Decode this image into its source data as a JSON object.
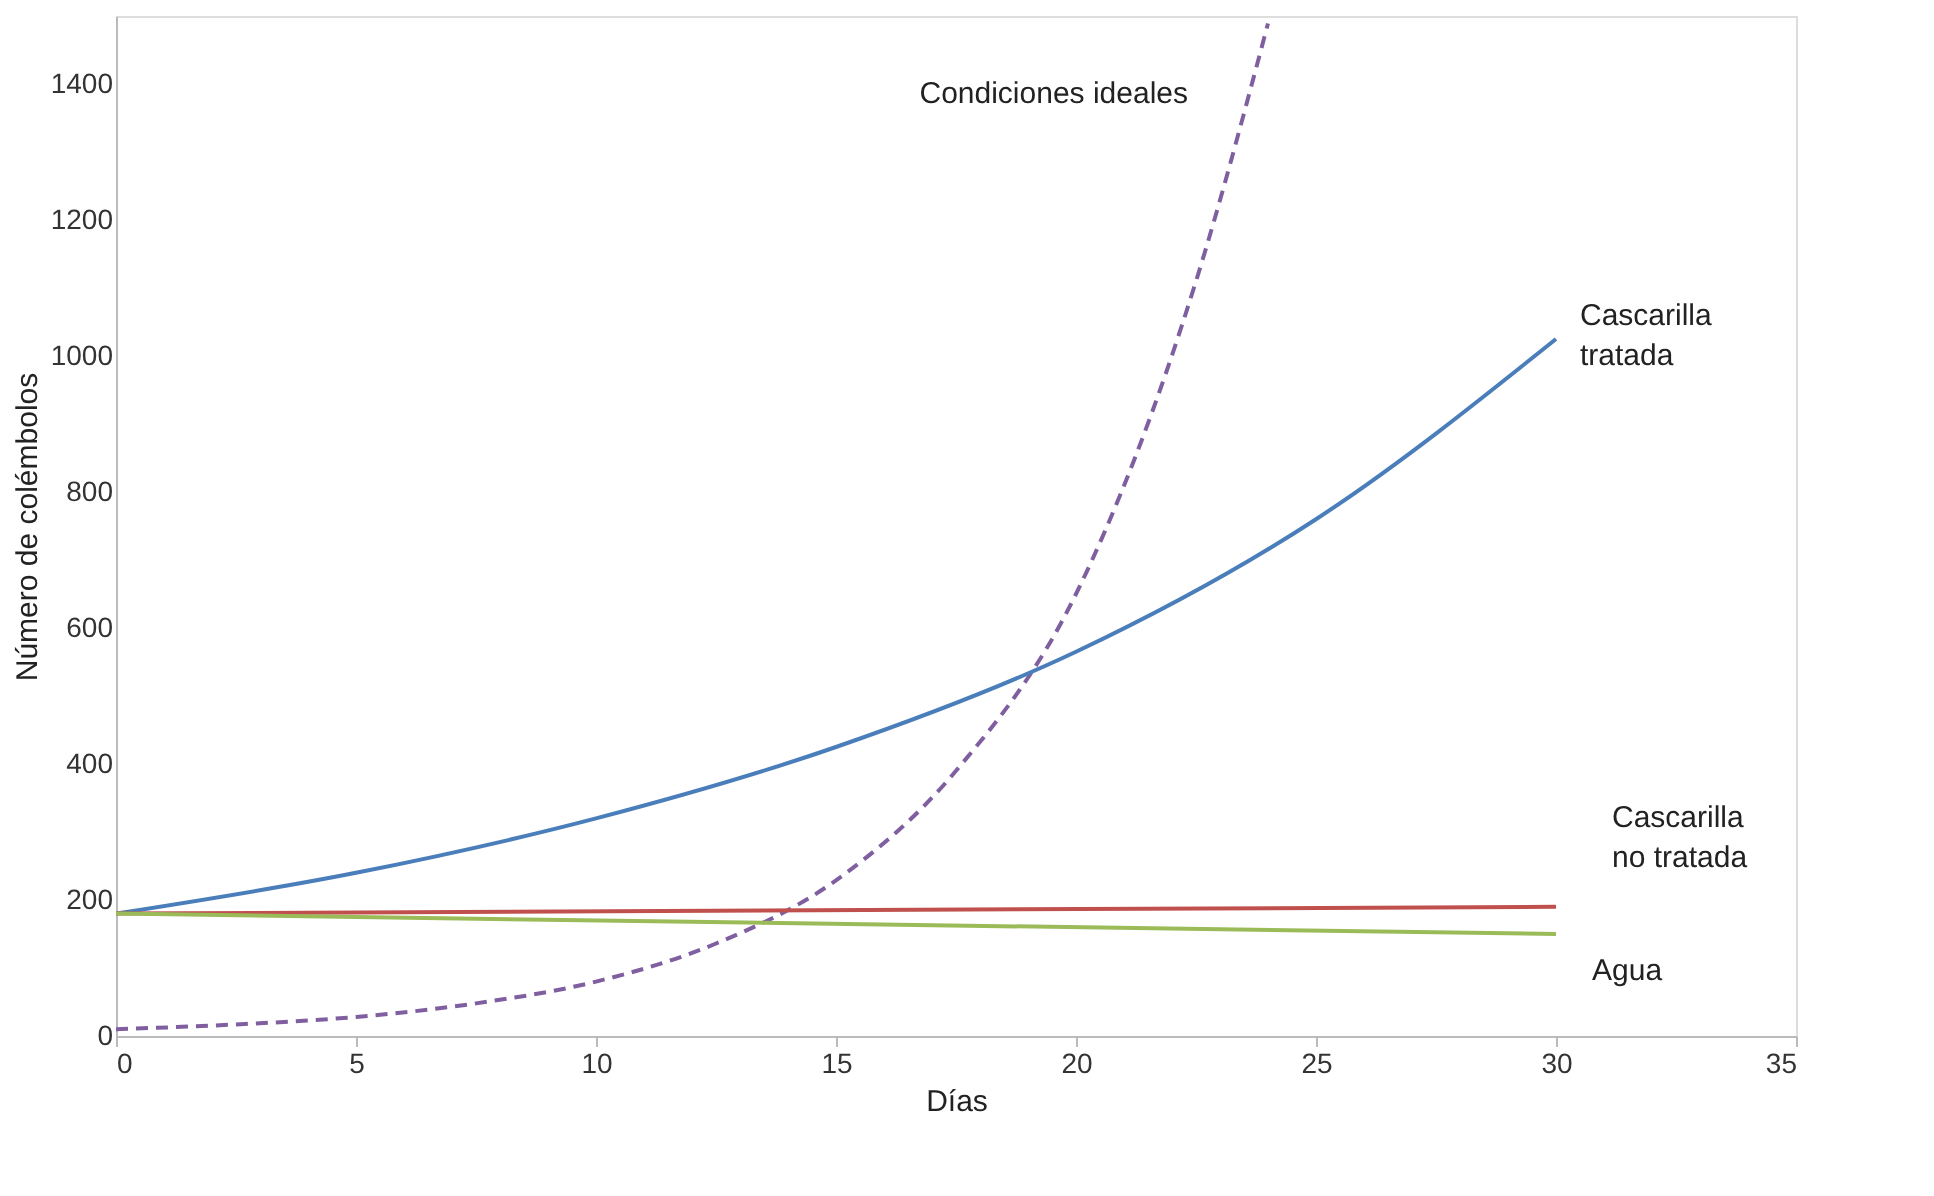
{
  "chart_data": {
    "type": "line",
    "xlabel": "Días",
    "ylabel": "Número de colémbolos",
    "xlim": [
      0,
      35
    ],
    "ylim": [
      0,
      1500
    ],
    "xticks": [
      0,
      5,
      10,
      15,
      20,
      25,
      30,
      35
    ],
    "yticks": [
      0,
      200,
      400,
      600,
      800,
      1000,
      1200,
      1400
    ],
    "grid": false,
    "series": [
      {
        "name": "Condiciones ideales",
        "color": "#7f5fa0",
        "line_style": "dashed",
        "x": [
          0,
          2.5,
          5,
          7.5,
          10,
          12.5,
          15,
          17.5,
          20,
          22.5,
          24
        ],
        "values": [
          10,
          17,
          28,
          48,
          80,
          136,
          229,
          390,
          650,
          1110,
          1489
        ]
      },
      {
        "name": "Cascarilla tratada",
        "color": "#4a7ebb",
        "line_style": "solid",
        "x": [
          0,
          5,
          10,
          15,
          20,
          25,
          30
        ],
        "values": [
          180,
          240,
          320,
          425,
          565,
          760,
          1025
        ]
      },
      {
        "name": "Cascarilla no tratada",
        "color": "#c0504d",
        "line_style": "solid",
        "x": [
          0,
          30
        ],
        "values": [
          180,
          190
        ]
      },
      {
        "name": "Agua",
        "color": "#9bbb59",
        "line_style": "solid",
        "x": [
          0,
          30
        ],
        "values": [
          180,
          150
        ]
      }
    ]
  }
}
